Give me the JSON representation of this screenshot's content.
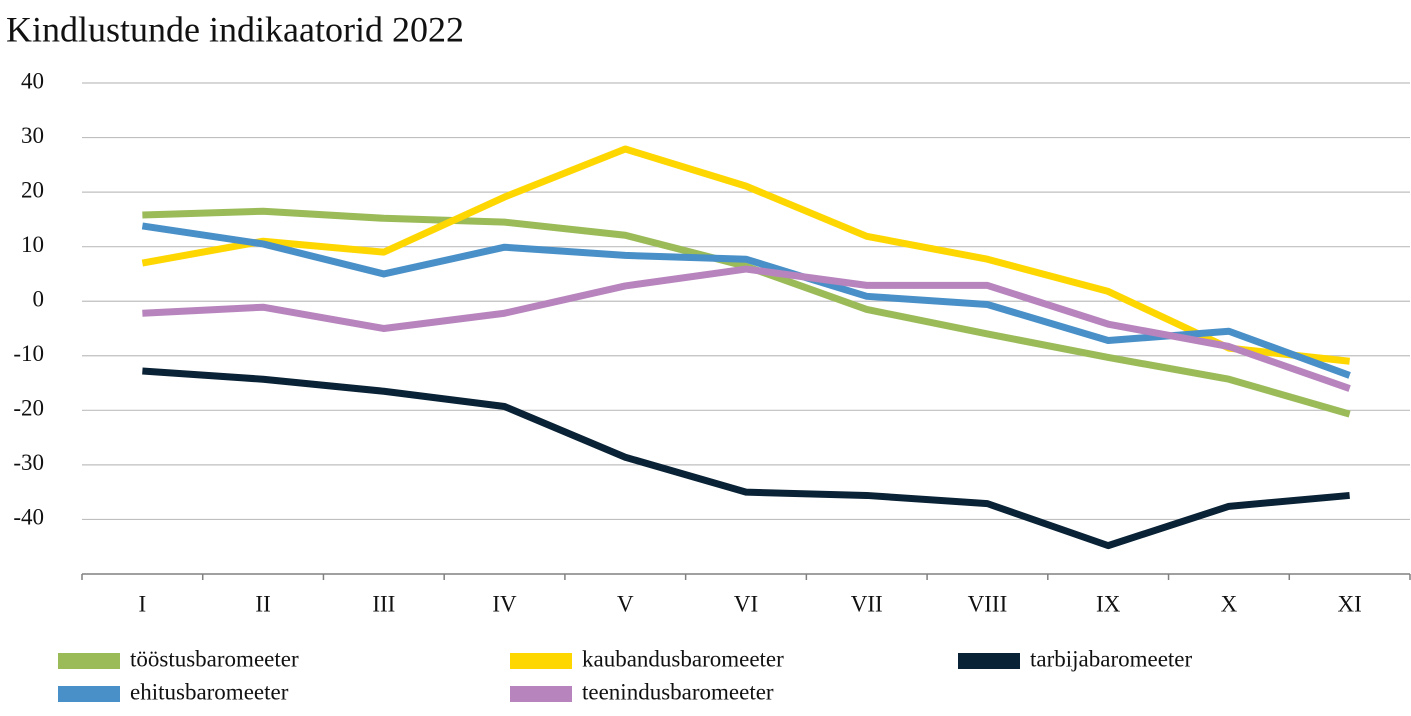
{
  "chart_data": {
    "type": "line",
    "title": "Kindlustunde indikaatorid 2022",
    "categories": [
      "I",
      "II",
      "III",
      "IV",
      "V",
      "VI",
      "VII",
      "VIII",
      "IX",
      "X",
      "XI"
    ],
    "series": [
      {
        "name": "tööstusbaromeeter",
        "color": "#9bbb59",
        "values": [
          15.8,
          16.5,
          15.2,
          14.5,
          12.1,
          6.4,
          -1.5,
          -6,
          -10.3,
          -14.3,
          -20.7
        ]
      },
      {
        "name": "kaubandusbaromeeter",
        "color": "#ffd700",
        "values": [
          7,
          11,
          9,
          19.1,
          27.9,
          21.1,
          11.9,
          7.7,
          1.8,
          -8.6,
          -11
        ]
      },
      {
        "name": "tarbijabaromeeter",
        "color": "#0a2235",
        "values": [
          -12.8,
          -14.3,
          -16.5,
          -19.3,
          -28.6,
          -35,
          -35.6,
          -37.1,
          -44.8,
          -37.6,
          -35.6
        ]
      },
      {
        "name": "ehitusbaromeeter",
        "color": "#4a90c8",
        "values": [
          13.8,
          10.5,
          5,
          9.9,
          8.4,
          7.7,
          0.9,
          -0.6,
          -7.2,
          -5.5,
          -13.6
        ]
      },
      {
        "name": "teenindusbaromeeter",
        "color": "#b784bd",
        "values": [
          -2.2,
          -1.1,
          -5,
          -2.2,
          2.8,
          5.9,
          2.9,
          2.9,
          -4.2,
          -8.3,
          -16
        ]
      }
    ],
    "ylim": [
      -50,
      40
    ],
    "yticks": [
      -40,
      -30,
      -20,
      -10,
      0,
      10,
      20,
      30,
      40
    ],
    "grid": true
  }
}
